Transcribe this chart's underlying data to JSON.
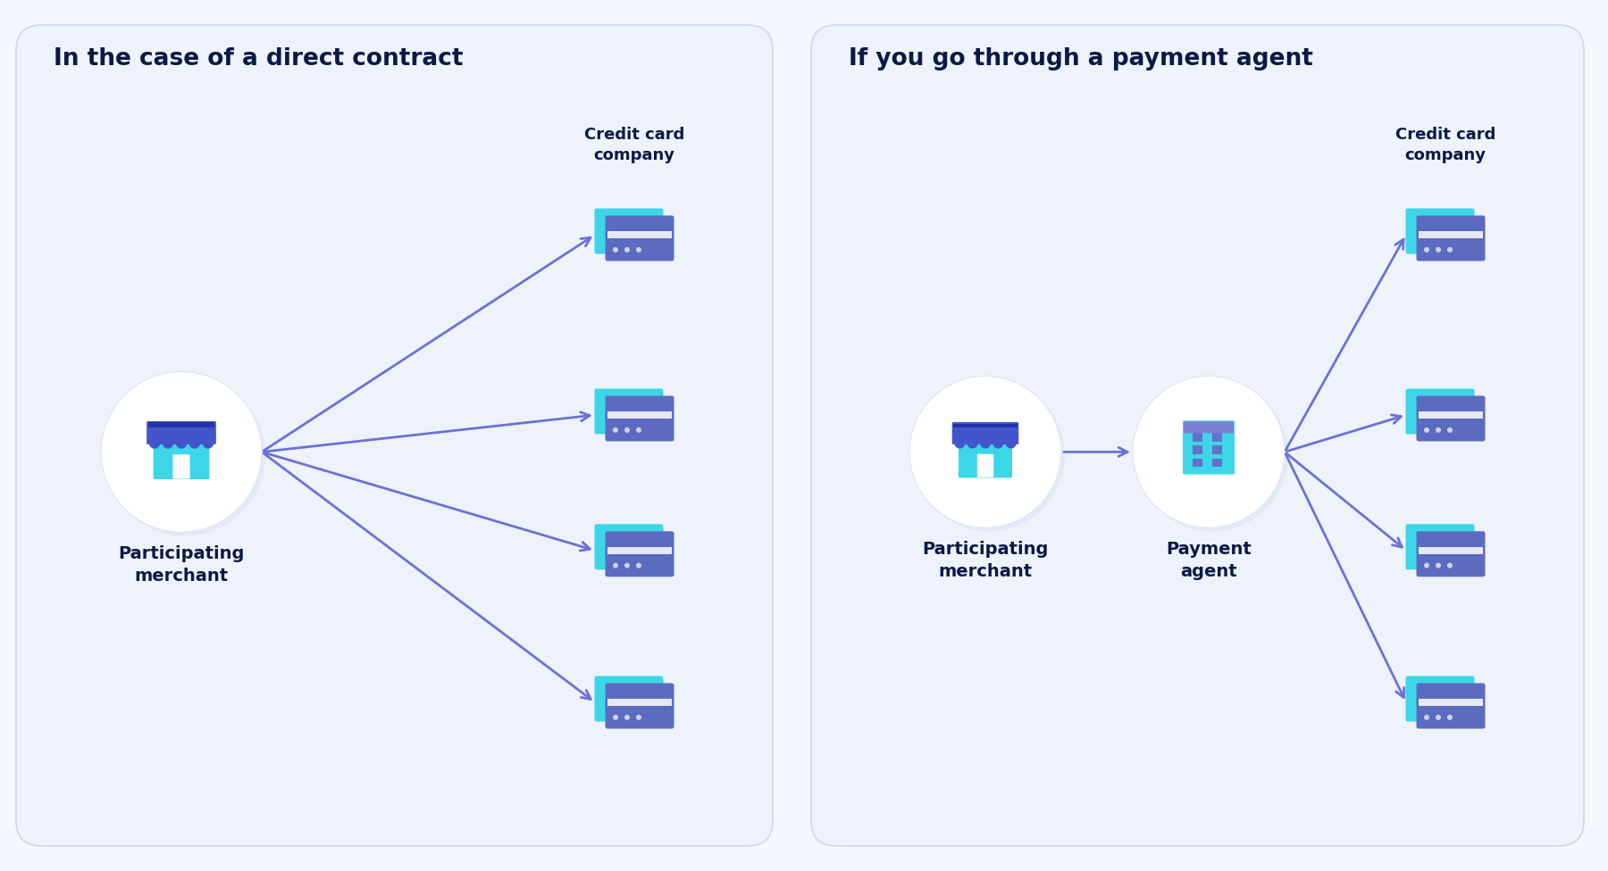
{
  "fig_w": 18.0,
  "fig_h": 9.76,
  "bg_color": "#f5f8ff",
  "panel_bg": "#edf2fb",
  "panel_border": "#ccd9ee",
  "title_color": "#0a1a45",
  "label_color": "#0a1a45",
  "arrow_color": "#6b72d4",
  "circle_bg": "#ffffff",
  "circle_shadow": "#dce5f5",
  "card_cyan": "#3dd6e8",
  "card_blue": "#5c6bc0",
  "card_stripe": "#3d50a8",
  "awning_blue": "#4455cc",
  "awning_dark": "#2233aa",
  "store_cyan": "#3dd6e8",
  "building_cyan": "#3dd6e8",
  "building_purple": "#7b7fd4",
  "building_win": "#6670cc",
  "left_title": "In the case of a direct contract",
  "right_title": "If you go through a payment agent",
  "credit_label": "Credit card\ncompany",
  "merchant_label": "Participating\nmerchant",
  "agent_label": "Payment\nagent"
}
